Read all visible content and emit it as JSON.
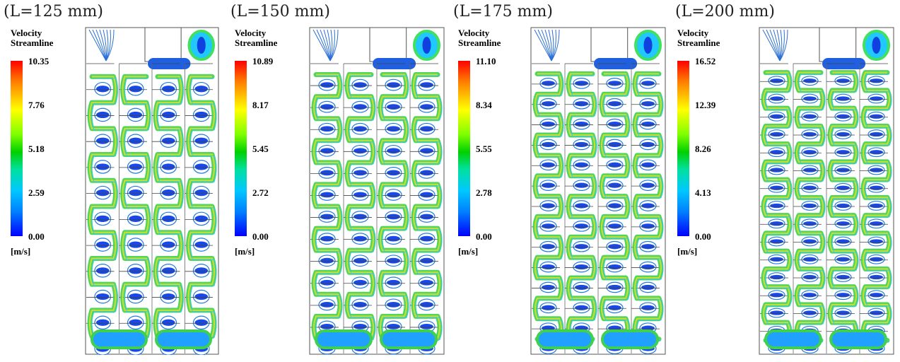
{
  "cases": [
    {
      "title": "(L=125 mm)",
      "legend": {
        "title_line1": "Velocity",
        "title_line2": "Streamline",
        "ticks": [
          "10.35",
          "7.76",
          "5.18",
          "2.59",
          "0.00"
        ],
        "unit": "[m/s]"
      }
    },
    {
      "title": "(L=150 mm)",
      "legend": {
        "title_line1": "Velocity",
        "title_line2": "Streamline",
        "ticks": [
          "10.89",
          "8.17",
          "5.45",
          "2.72",
          "0.00"
        ],
        "unit": "[m/s]"
      }
    },
    {
      "title": "(L=175 mm)",
      "legend": {
        "title_line1": "Velocity",
        "title_line2": "Streamline",
        "ticks": [
          "11.10",
          "8.34",
          "5.55",
          "2.78",
          "0.00"
        ],
        "unit": "[m/s]"
      }
    },
    {
      "title": "(L=200 mm)",
      "legend": {
        "title_line1": "Velocity",
        "title_line2": "Streamline",
        "ticks": [
          "16.52",
          "12.39",
          "8.26",
          "4.13",
          "0.00"
        ],
        "unit": "[m/s]"
      }
    }
  ],
  "chart_data": [
    {
      "type": "heatmap",
      "title": "(L=125 mm)",
      "colorbar_label": "Velocity Streamline",
      "unit": "[m/s]",
      "range": [
        0.0,
        10.35
      ],
      "ticks": [
        10.35,
        7.76,
        5.18,
        2.59,
        0.0
      ],
      "rows": 11
    },
    {
      "type": "heatmap",
      "title": "(L=150 mm)",
      "colorbar_label": "Velocity Streamline",
      "unit": "[m/s]",
      "range": [
        0.0,
        10.89
      ],
      "ticks": [
        10.89,
        8.17,
        5.45,
        2.72,
        0.0
      ],
      "rows": 13
    },
    {
      "type": "heatmap",
      "title": "(L=175 mm)",
      "colorbar_label": "Velocity Streamline",
      "unit": "[m/s]",
      "range": [
        0.0,
        11.1
      ],
      "ticks": [
        11.1,
        8.34,
        5.55,
        2.78,
        0.0
      ],
      "rows": 14
    },
    {
      "type": "heatmap",
      "title": "(L=200 mm)",
      "colorbar_label": "Velocity Streamline",
      "unit": "[m/s]",
      "range": [
        0.0,
        16.52
      ],
      "ticks": [
        16.52,
        12.39,
        8.26,
        4.13,
        0.0
      ],
      "rows": 16
    }
  ]
}
